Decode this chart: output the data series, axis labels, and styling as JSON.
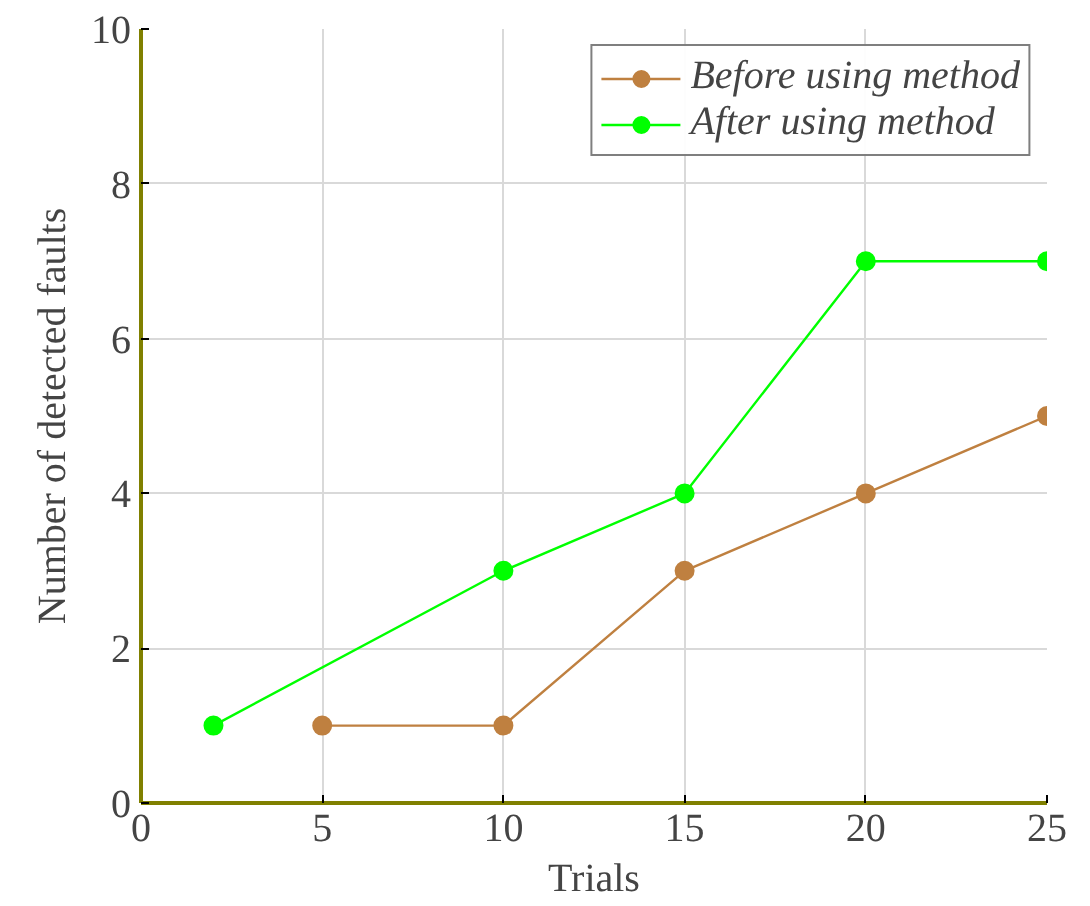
{
  "chart_data": {
    "type": "line",
    "xlabel": "Trials",
    "ylabel": "Number of detected faults",
    "series": [
      {
        "name": "Before using method",
        "color": "#bf8040",
        "x": [
          5,
          10,
          15,
          20,
          25
        ],
        "values": [
          1,
          1,
          3,
          4,
          5
        ]
      },
      {
        "name": "After using method",
        "color": "#00ff00",
        "x": [
          2,
          10,
          15,
          20,
          25
        ],
        "values": [
          1,
          3,
          4,
          7,
          7
        ]
      }
    ],
    "xlim": [
      0,
      25
    ],
    "xticks": [
      0,
      5,
      10,
      15,
      20,
      25
    ],
    "ylim": [
      0,
      10
    ],
    "yticks": [
      0,
      2,
      4,
      6,
      8,
      10
    ],
    "grid": true,
    "legend": "top right",
    "marker": "circle",
    "line_style": "solid"
  }
}
